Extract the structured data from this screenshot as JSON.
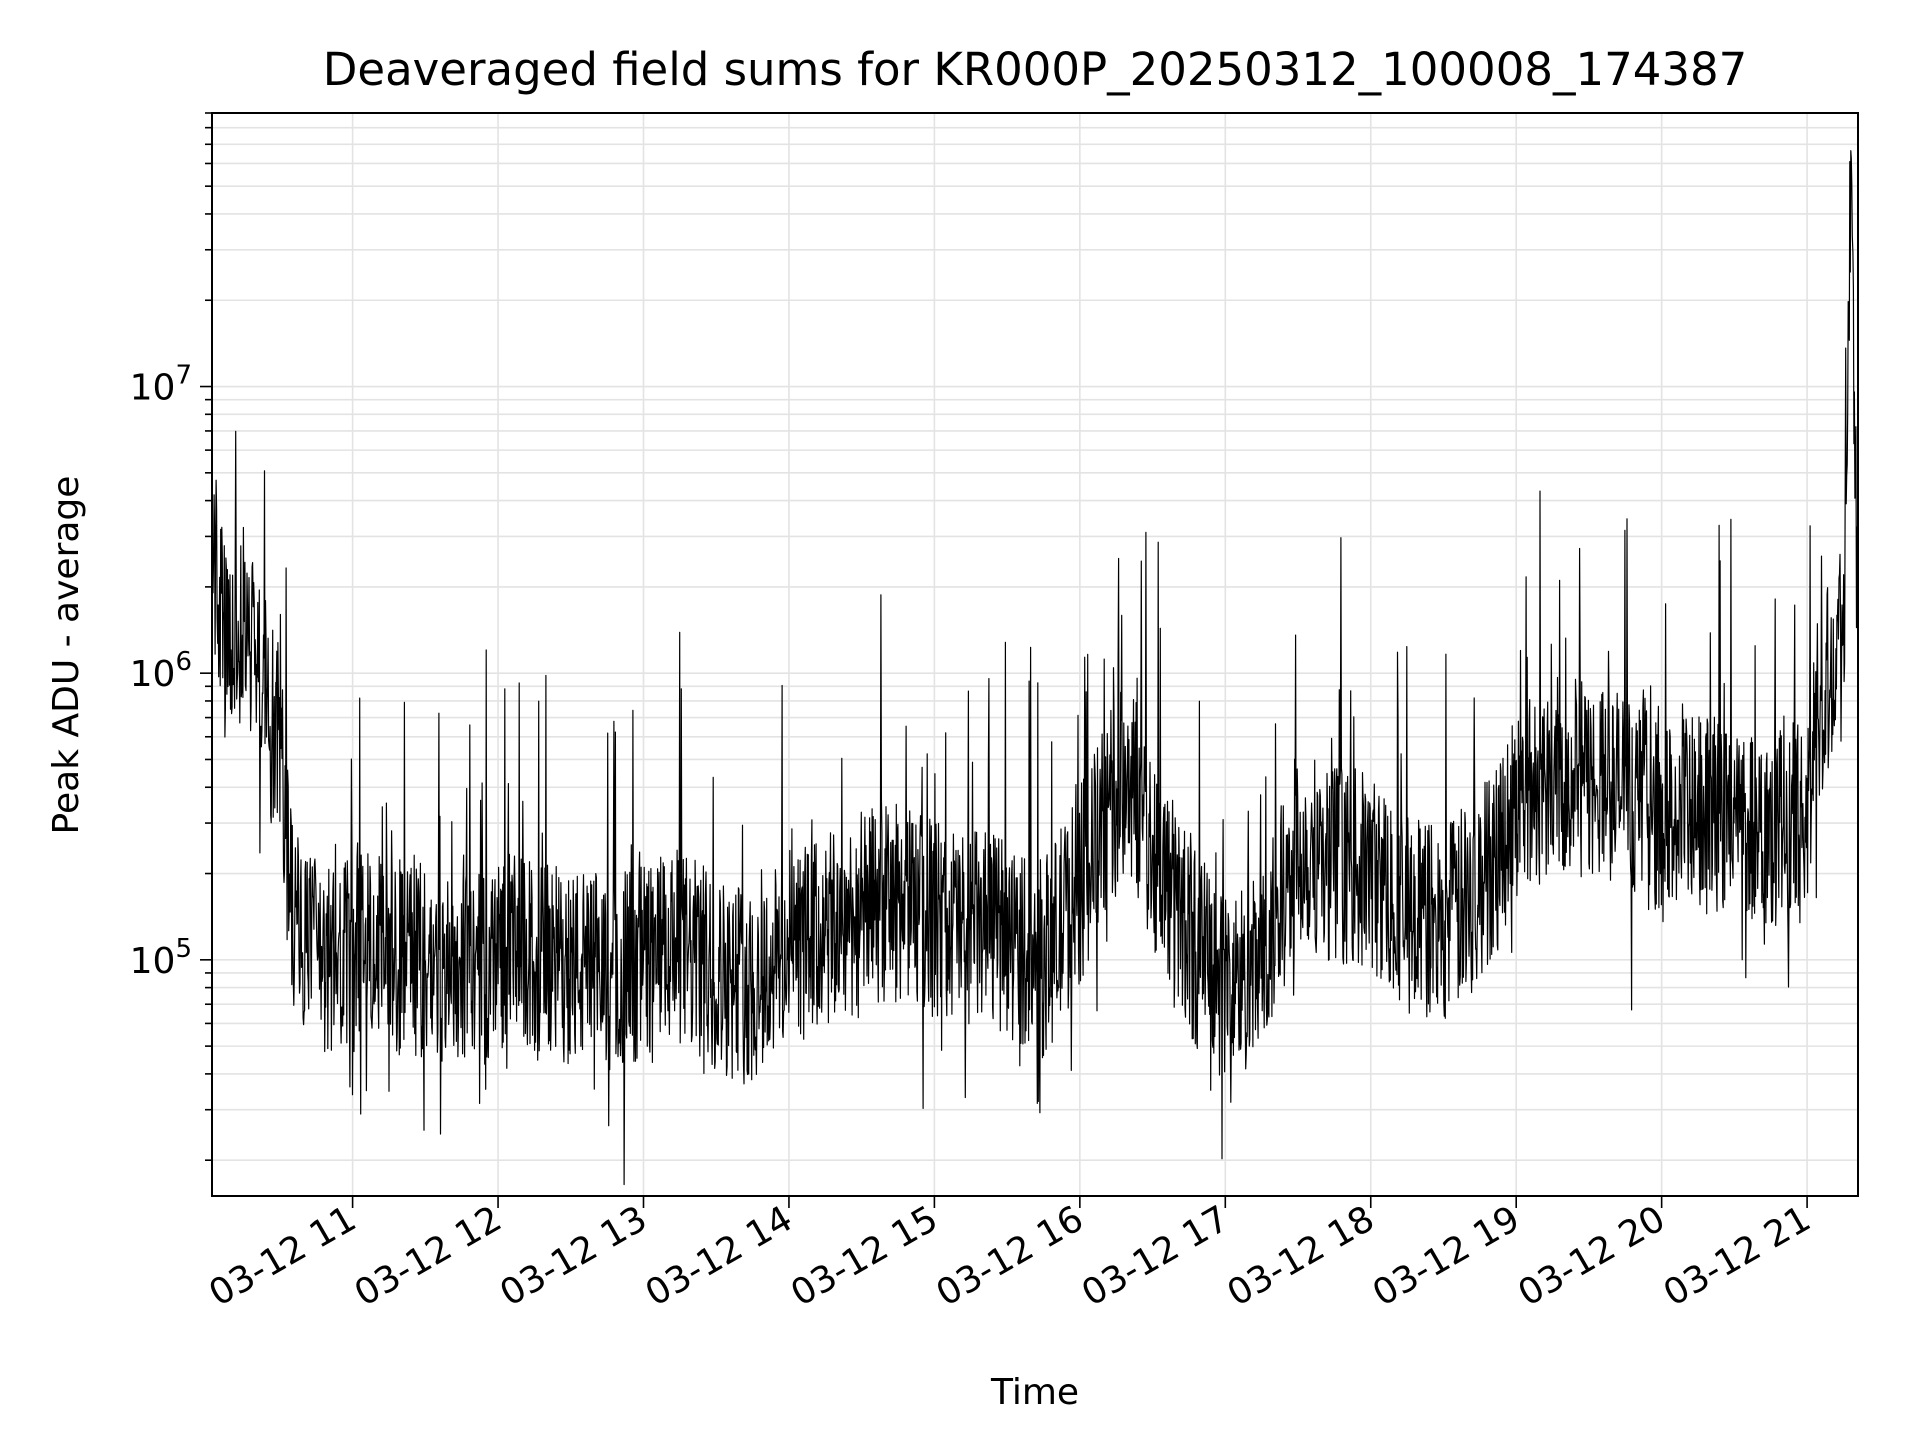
{
  "chart_data": {
    "type": "line",
    "title": "Deaveraged field sums for KR000P_20250312_100008_174387",
    "xlabel": "Time",
    "ylabel": "Peak ADU - average",
    "y_scale": "log",
    "x_range": [
      "2025-03-12 10:02",
      "2025-03-12 21:21"
    ],
    "ylim": [
      15000,
      90000000
    ],
    "x_tick_labels": [
      "03-12 11",
      "03-12 12",
      "03-12 13",
      "03-12 14",
      "03-12 15",
      "03-12 16",
      "03-12 17",
      "03-12 18",
      "03-12 19",
      "03-12 20",
      "03-12 21"
    ],
    "y_tick_labels": [
      {
        "base": "10",
        "exp": "5"
      },
      {
        "base": "10",
        "exp": "6"
      },
      {
        "base": "10",
        "exp": "7"
      }
    ],
    "grid": true,
    "line_color": "#000000",
    "series": [
      {
        "x": [
          "10:02",
          "10:05",
          "10:08",
          "10:12",
          "10:16",
          "10:20",
          "10:25",
          "10:30",
          "10:35",
          "10:40",
          "10:45",
          "10:50",
          "10:55",
          "11:00",
          "11:05",
          "11:10",
          "11:15",
          "11:20",
          "11:25",
          "11:30",
          "11:35",
          "11:40",
          "11:45",
          "11:50",
          "11:55",
          "12:00",
          "12:15",
          "12:30",
          "12:45",
          "13:00",
          "13:15",
          "13:30",
          "13:45",
          "14:00",
          "14:15",
          "14:30",
          "14:45",
          "15:00",
          "15:15",
          "15:30",
          "15:45",
          "16:00",
          "16:10",
          "16:20",
          "16:30",
          "16:45",
          "17:00",
          "17:15",
          "17:30",
          "17:45",
          "18:00",
          "18:15",
          "18:30",
          "18:45",
          "19:00",
          "19:15",
          "19:30",
          "19:45",
          "20:00",
          "20:15",
          "20:30",
          "20:45",
          "21:00",
          "21:05",
          "21:10",
          "21:15",
          "21:18",
          "21:21"
        ],
        "y": [
          3000000,
          1800000,
          1100000,
          1300000,
          1500000,
          1200000,
          800000,
          600000,
          150000,
          110000,
          100000,
          95000,
          98000,
          100000,
          140000,
          120000,
          110000,
          100000,
          105000,
          95000,
          92000,
          90000,
          100000,
          95000,
          90000,
          110000,
          100000,
          95000,
          90000,
          100000,
          110000,
          90000,
          80000,
          110000,
          120000,
          150000,
          160000,
          140000,
          130000,
          120000,
          100000,
          180000,
          300000,
          450000,
          250000,
          120000,
          80000,
          90000,
          250000,
          220000,
          200000,
          150000,
          130000,
          180000,
          350000,
          450000,
          420000,
          400000,
          300000,
          320000,
          310000,
          300000,
          300000,
          800000,
          1100000,
          1300000,
          50000000,
          1500000
        ]
      }
    ]
  }
}
